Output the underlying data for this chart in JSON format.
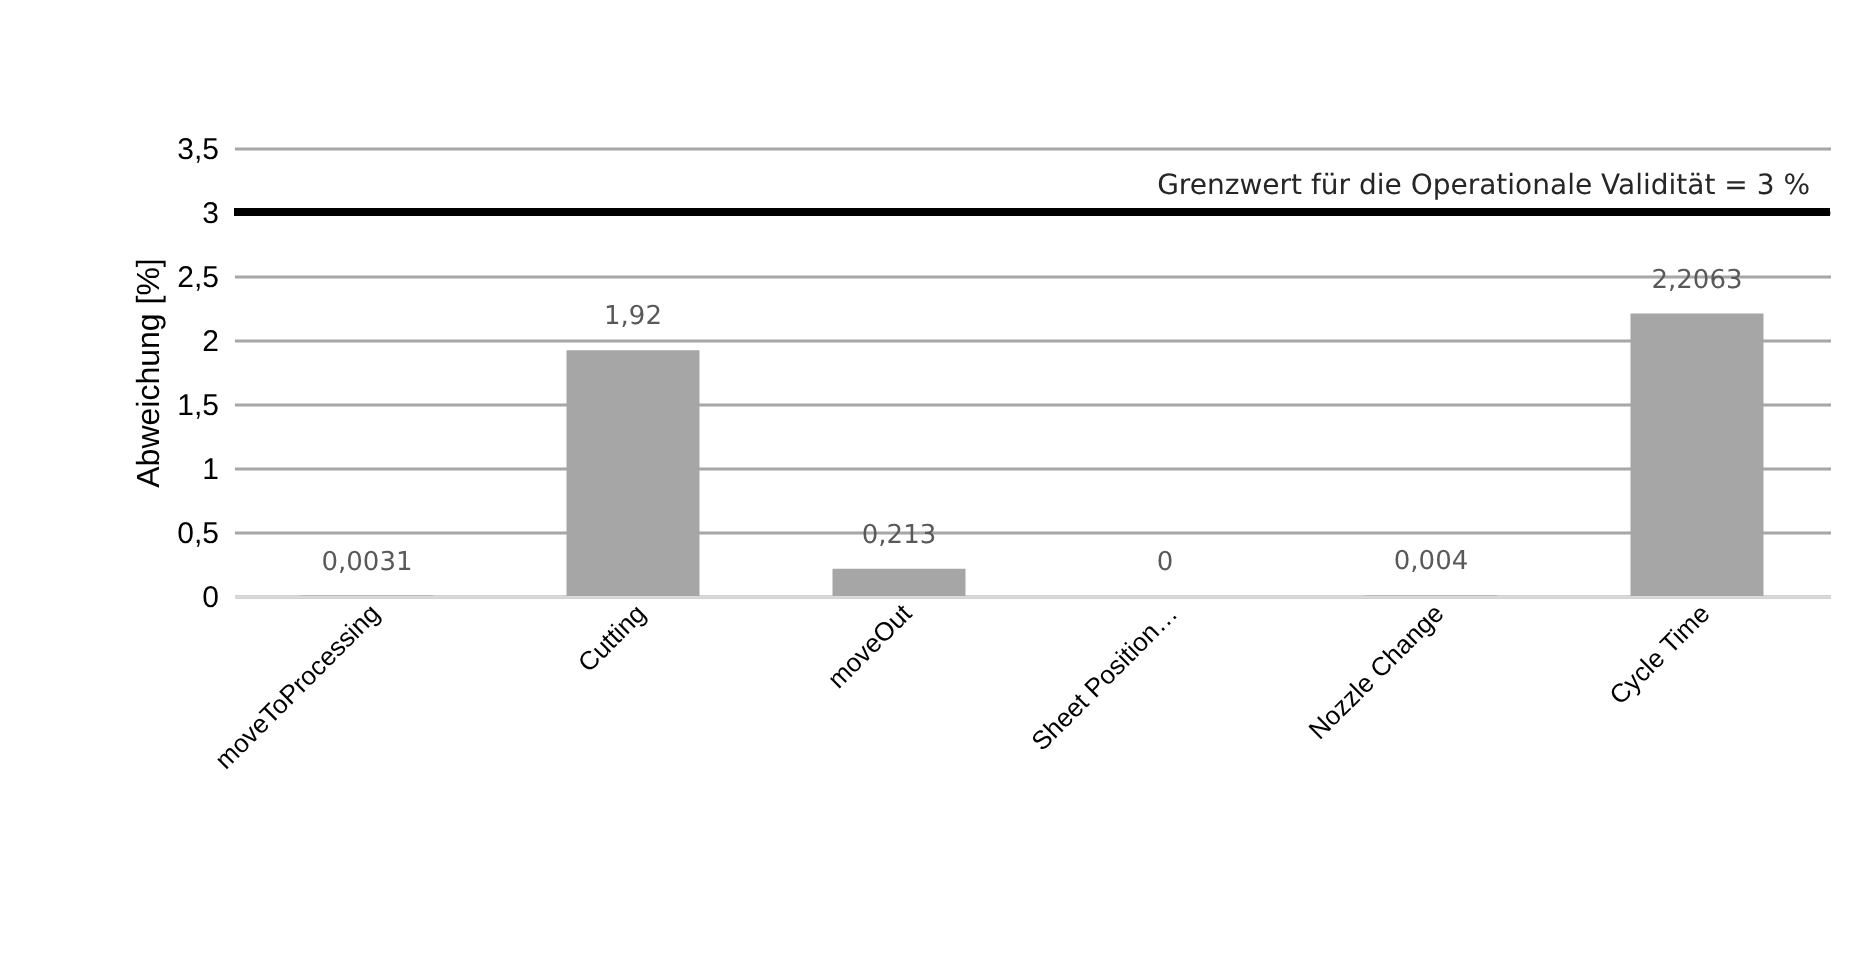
{
  "chart_data": {
    "type": "bar",
    "ylabel": "Abweichung [%]",
    "categories": [
      "moveToProcessing",
      "Cutting",
      "moveOut",
      "Sheet Position…",
      "Nozzle Change",
      "Cycle Time"
    ],
    "values": [
      0.0031,
      1.92,
      0.213,
      0,
      0.004,
      2.2063
    ],
    "value_labels": [
      "0,0031",
      "1,92",
      "0,213",
      "0",
      "0,004",
      "2,2063"
    ],
    "color": "#a6a6a6",
    "ylim": [
      0,
      3.5
    ],
    "yticks": [
      0,
      {
        "value": 0.5,
        "label": "0,5"
      },
      1,
      {
        "value": 1.5,
        "label": "1,5"
      },
      2,
      {
        "value": 2.5,
        "label": "2,5"
      },
      3,
      {
        "value": 3.5,
        "label": "3,5"
      }
    ],
    "ref_lines": [
      {
        "axis": "y",
        "value": 3,
        "label": "Grenzwert für die Operationale Validität = 3 %",
        "color": "#000000"
      }
    ],
    "grid": true
  }
}
